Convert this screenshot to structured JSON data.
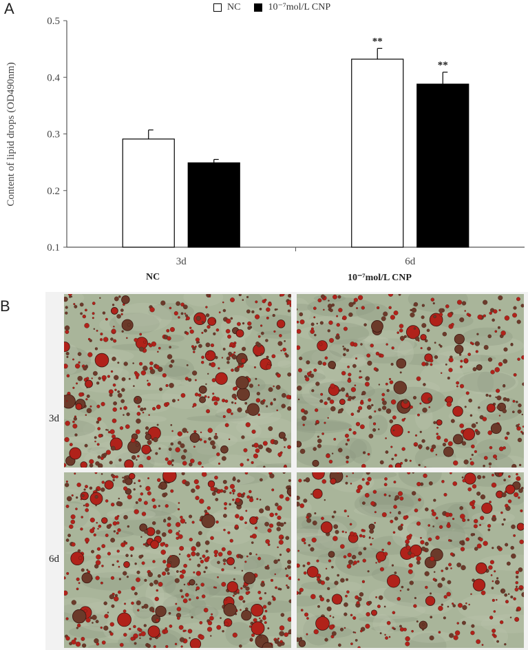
{
  "panels": {
    "a": "A",
    "b": "B"
  },
  "legend": {
    "nc": "NC",
    "cnp": "10⁻⁷mol/L CNP"
  },
  "colors": {
    "nc_fill": "#ffffff",
    "cnp_fill": "#000000",
    "axis": "#555555",
    "tissue": "#a9b59a",
    "droplet": "#b0221a"
  },
  "chart_data": {
    "type": "bar",
    "categories": [
      "3d",
      "6d"
    ],
    "series": [
      {
        "name": "NC",
        "values": [
          0.291,
          0.432
        ],
        "errors": [
          0.016,
          0.019
        ]
      },
      {
        "name": "10⁻⁷mol/L CNP",
        "values": [
          0.249,
          0.388
        ],
        "errors": [
          0.006,
          0.021
        ]
      }
    ],
    "significance": [
      [
        "",
        "**"
      ],
      [
        "",
        "**"
      ]
    ],
    "ylabel": "Content of lipid drops (OD490nm)",
    "xlabel": "",
    "ylim": [
      0.1,
      0.5
    ],
    "yticks": [
      "0.1",
      "0.2",
      "0.3",
      "0.4",
      "0.5"
    ],
    "grid": false,
    "legend_position": "top-center"
  },
  "micrographs": {
    "column_labels": [
      "NC",
      "10⁻⁷mol/L CNP"
    ],
    "row_labels": [
      "3d",
      "6d"
    ]
  }
}
